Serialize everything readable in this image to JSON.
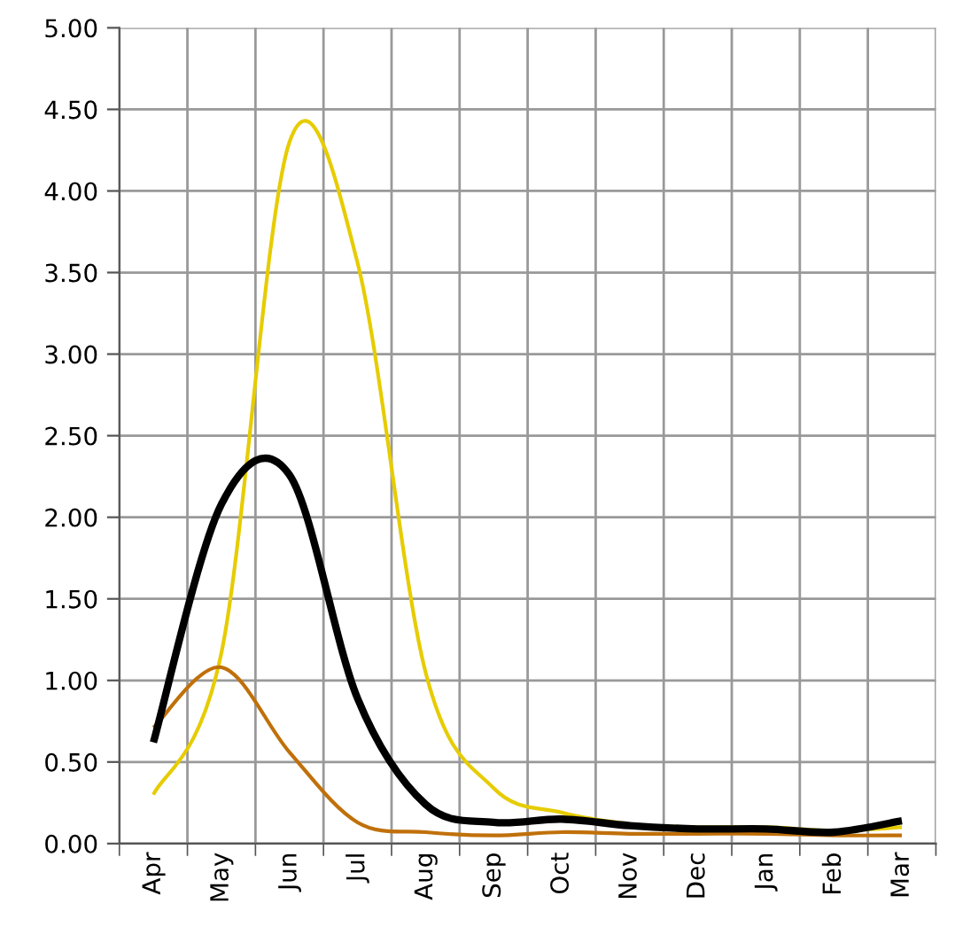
{
  "chart_data": {
    "type": "line",
    "categories": [
      "Apr",
      "May",
      "Jun",
      "Jul",
      "Aug",
      "Sep",
      "Oct",
      "Nov",
      "Dec",
      "Jan",
      "Feb",
      "Mar"
    ],
    "series": [
      {
        "color": "#e6cc00",
        "values": [
          0.3,
          1.17,
          4.3,
          3.56,
          1.05,
          0.34,
          0.19,
          0.12,
          0.1,
          0.1,
          0.08,
          0.1
        ]
      },
      {
        "color": "#c0700a",
        "values": [
          0.71,
          1.08,
          0.56,
          0.13,
          0.07,
          0.05,
          0.07,
          0.06,
          0.06,
          0.06,
          0.05,
          0.05
        ]
      },
      {
        "color": "#000000",
        "values": [
          0.62,
          2.08,
          2.26,
          0.89,
          0.24,
          0.13,
          0.15,
          0.11,
          0.09,
          0.09,
          0.07,
          0.14
        ]
      }
    ],
    "ylim": [
      0,
      5
    ],
    "yticks": [
      {
        "value": 0,
        "label": "0.00"
      },
      {
        "value": 0.5,
        "label": "0.50"
      },
      {
        "value": 1,
        "label": "1.00"
      },
      {
        "value": 1.5,
        "label": "1.50"
      },
      {
        "value": 2,
        "label": "2.00"
      },
      {
        "value": 2.5,
        "label": "2.50"
      },
      {
        "value": 3,
        "label": "3.00"
      },
      {
        "value": 3.5,
        "label": "3.50"
      },
      {
        "value": 4,
        "label": "4.00"
      },
      {
        "value": 4.5,
        "label": "4.50"
      },
      {
        "value": 5,
        "label": "5.00"
      }
    ],
    "grid": true,
    "marker": "none",
    "line_style": "solid"
  }
}
